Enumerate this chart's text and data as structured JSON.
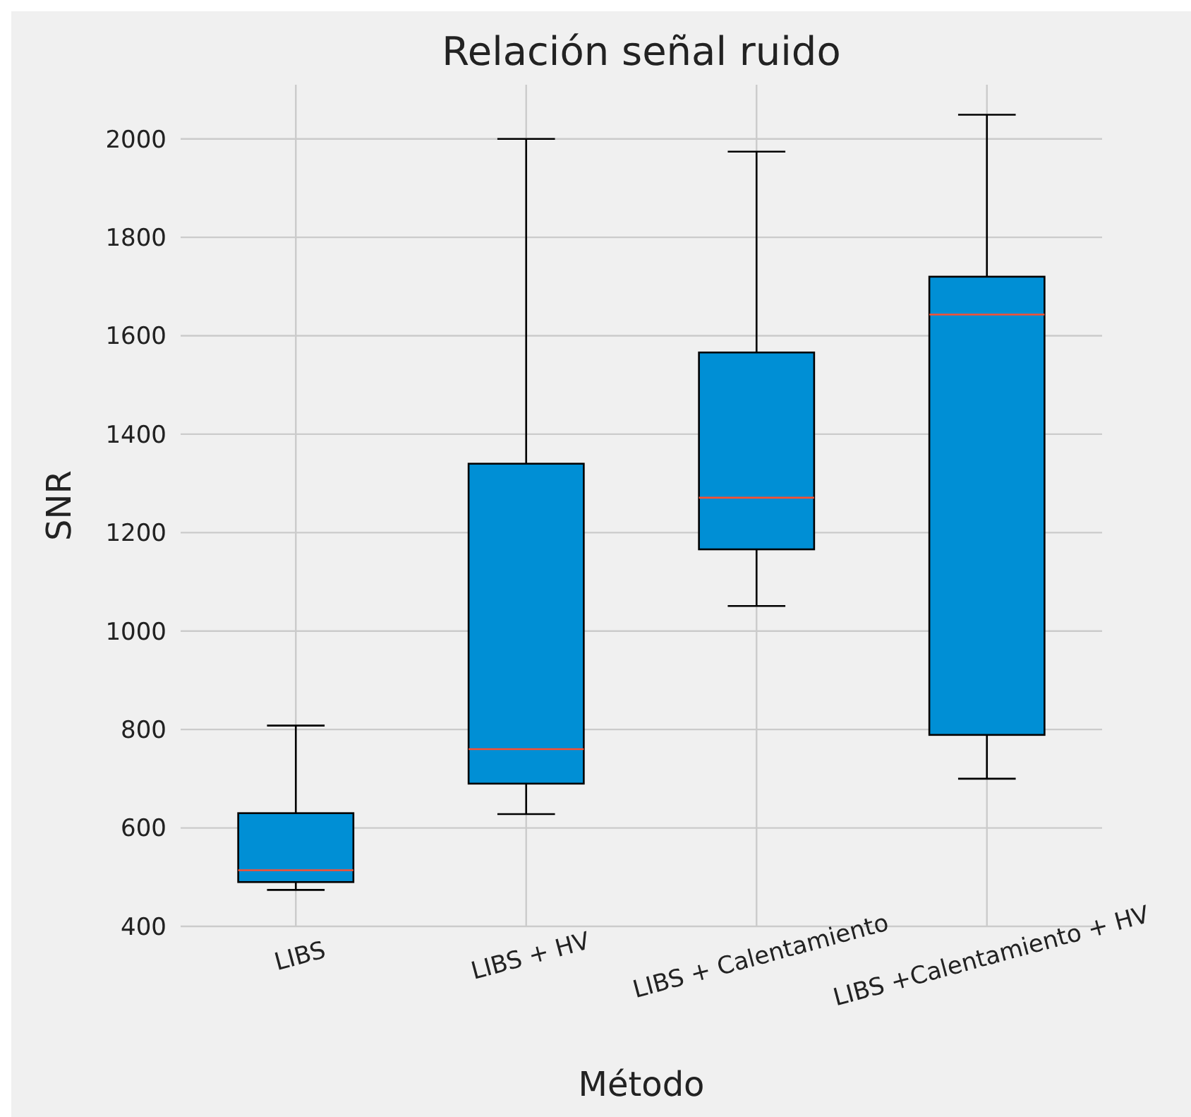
{
  "chart_data": {
    "type": "box",
    "title": "Relación señal ruido",
    "xlabel": "Método",
    "ylabel": "SNR",
    "categories": [
      "LIBS",
      "LIBS + HV",
      "LIBS + Calentamiento",
      "LIBS +Calentamiento + HV"
    ],
    "boxes": [
      {
        "low": 474,
        "q1": 490,
        "median": 514,
        "q3": 630,
        "high": 808
      },
      {
        "low": 628,
        "q1": 690,
        "median": 760,
        "q3": 1340,
        "high": 2000
      },
      {
        "low": 1051,
        "q1": 1166,
        "median": 1271,
        "q3": 1566,
        "high": 1974
      },
      {
        "low": 700,
        "q1": 789,
        "median": 1643,
        "q3": 1720,
        "high": 2049
      }
    ],
    "color": "#008fd5",
    "ylim": [
      400,
      2110
    ],
    "yticks": [
      400,
      600,
      800,
      1000,
      1200,
      1400,
      1600,
      1800,
      2000
    ],
    "grid": true
  }
}
